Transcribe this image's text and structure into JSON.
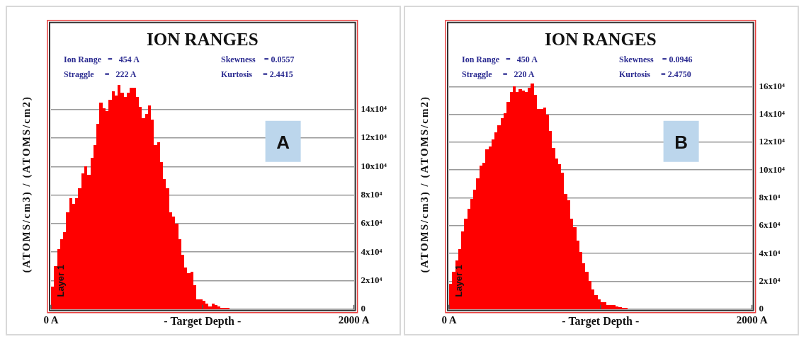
{
  "chart_data": [
    {
      "type": "histogram",
      "title": "ION RANGES",
      "xlabel": "- Target Depth -",
      "ylabel": "(ATOMS/cm3) / (ATOMS/cm2)",
      "annotations": [
        "Ion Range   =   454 A",
        "Straggle     =   222 A",
        "Skewness    = 0.0557",
        "Kurtosis     = 2.4415",
        "A",
        "Layer 1"
      ],
      "bins": [
        0,
        20,
        40,
        60,
        80,
        100,
        120,
        140,
        160,
        180,
        200,
        220,
        240,
        260,
        280,
        300,
        320,
        340,
        360,
        380,
        400,
        420,
        440,
        460,
        480,
        500,
        520,
        540,
        560,
        580,
        600,
        620,
        640,
        660,
        680,
        700,
        720,
        740,
        760,
        780,
        800,
        820,
        840,
        860,
        880,
        900,
        920,
        940,
        960,
        980,
        1000,
        1020,
        1040,
        1060,
        1080,
        1100,
        1120,
        1140,
        1160,
        1180,
        1200
      ],
      "values": [
        16000,
        30000,
        42000,
        49000,
        54000,
        68000,
        78000,
        74000,
        78000,
        85000,
        95000,
        100000,
        94000,
        106000,
        115000,
        130000,
        145000,
        141000,
        139000,
        147000,
        153000,
        150000,
        157000,
        152000,
        149000,
        152000,
        155000,
        155000,
        149000,
        142000,
        134000,
        137000,
        143000,
        133000,
        115000,
        117000,
        103000,
        91000,
        85000,
        68000,
        65000,
        60000,
        49000,
        38000,
        29000,
        25000,
        26000,
        17000,
        7000,
        7000,
        6000,
        4000,
        2000,
        4000,
        3000,
        2000,
        1000,
        1000,
        1000,
        0
      ],
      "color": "#ff0000",
      "xlim": [
        0,
        2000
      ],
      "xticks": [
        {
          "value": 0,
          "label": "0 A"
        },
        {
          "value": 1000,
          "label": null
        },
        {
          "value": 2000,
          "label": "2000 A"
        }
      ],
      "ylim": [
        0,
        200000
      ],
      "yticks": [
        0,
        {
          "value": 20000,
          "label": "2x10⁴"
        },
        {
          "value": 40000,
          "label": "4x10⁴"
        },
        {
          "value": 60000,
          "label": "6x10⁴"
        },
        {
          "value": 80000,
          "label": "8x10⁴"
        },
        {
          "value": 100000,
          "label": "10x10⁴"
        },
        {
          "value": 120000,
          "label": "12x10⁴"
        },
        {
          "value": 140000,
          "label": "14x10⁴"
        }
      ],
      "grid": "y"
    },
    {
      "type": "histogram",
      "title": "ION RANGES",
      "xlabel": "- Target Depth -",
      "ylabel": "(ATOMS/cm3) / (ATOMS/cm2)",
      "annotations": [
        "Ion Range   =   450 A",
        "Straggle     =   220 A",
        "Skewness    = 0.0946",
        "Kurtosis     = 2.4750",
        "B",
        "Layer 1"
      ],
      "bins": [
        0,
        20,
        40,
        60,
        80,
        100,
        120,
        140,
        160,
        180,
        200,
        220,
        240,
        260,
        280,
        300,
        320,
        340,
        360,
        380,
        400,
        420,
        440,
        460,
        480,
        500,
        520,
        540,
        560,
        580,
        600,
        620,
        640,
        660,
        680,
        700,
        720,
        740,
        760,
        780,
        800,
        820,
        840,
        860,
        880,
        900,
        920,
        940,
        960,
        980,
        1000,
        1020,
        1040,
        1060,
        1080,
        1100,
        1120,
        1140,
        1160,
        1180,
        1200
      ],
      "values": [
        18000,
        27000,
        35000,
        43000,
        56000,
        65000,
        72000,
        79000,
        86000,
        94000,
        103000,
        105000,
        115000,
        117000,
        122000,
        127000,
        132000,
        137000,
        141000,
        149000,
        156000,
        160000,
        156000,
        158000,
        157000,
        156000,
        159000,
        162000,
        154000,
        144000,
        144000,
        145000,
        140000,
        128000,
        116000,
        108000,
        104000,
        98000,
        83000,
        78000,
        65000,
        59000,
        49000,
        41000,
        33000,
        27000,
        20000,
        14000,
        10000,
        7000,
        5000,
        5000,
        3000,
        3000,
        3000,
        2000,
        1500,
        1000,
        1000,
        0
      ],
      "color": "#ff0000",
      "xlim": [
        0,
        2000
      ],
      "xticks": [
        {
          "value": 0,
          "label": "0 A"
        },
        {
          "value": 1000,
          "label": null
        },
        {
          "value": 2000,
          "label": "2000 A"
        }
      ],
      "ylim": [
        0,
        205000
      ],
      "yticks": [
        0,
        {
          "value": 20000,
          "label": "2x10⁴"
        },
        {
          "value": 40000,
          "label": "4x10⁴"
        },
        {
          "value": 60000,
          "label": "6x10⁴"
        },
        {
          "value": 80000,
          "label": "8x10⁴"
        },
        {
          "value": 100000,
          "label": "10x10⁴"
        },
        {
          "value": 120000,
          "label": "12x10⁴"
        },
        {
          "value": 140000,
          "label": "14x10⁴"
        },
        {
          "value": 160000,
          "label": "16x10⁴"
        }
      ],
      "grid": "y"
    }
  ]
}
